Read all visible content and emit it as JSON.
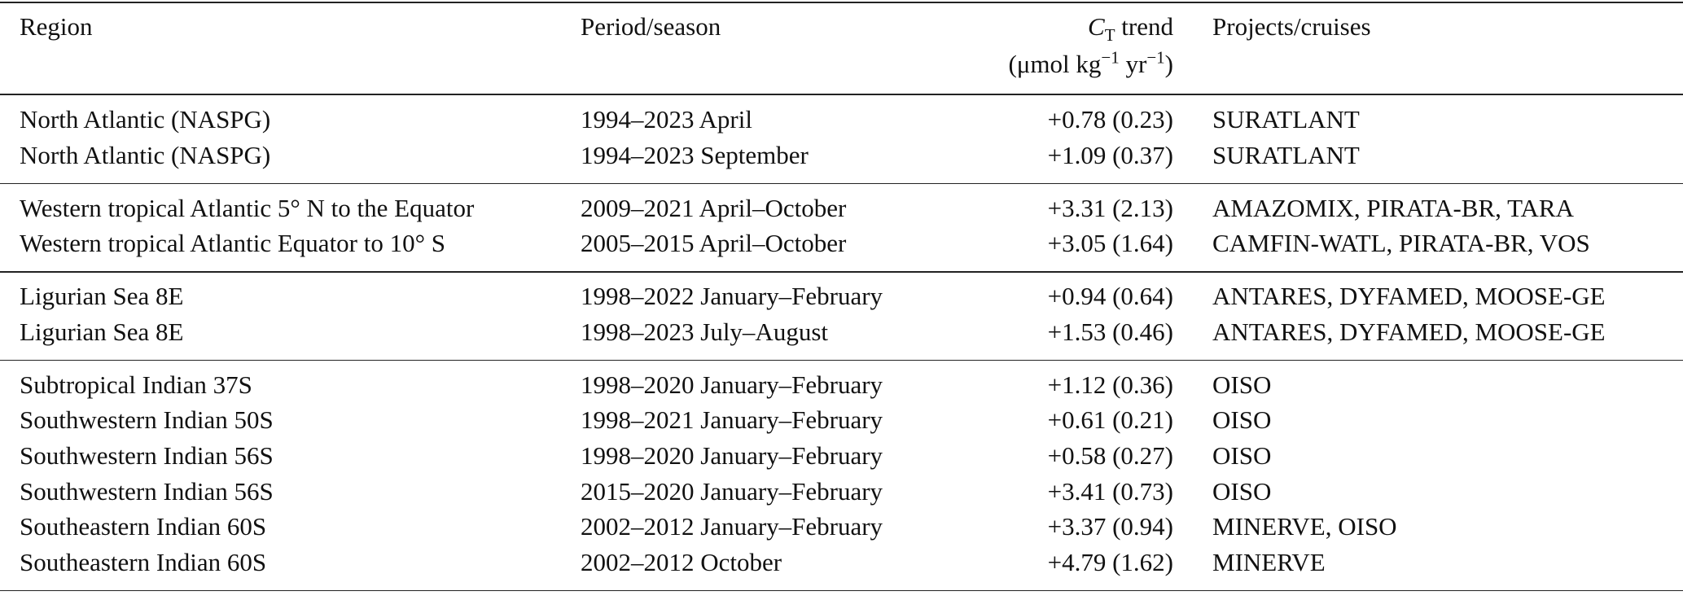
{
  "header": {
    "region": "Region",
    "period": "Period/season",
    "trend": {
      "symbol": "C",
      "subscript": "T",
      "label": "trend",
      "unit": [
        "(μmol kg",
        "−1",
        "yr",
        "−1",
        ")"
      ]
    },
    "projects": "Projects/cruises"
  },
  "table": {
    "groups": [
      {
        "rows": [
          [
            "North Atlantic (NASPG)",
            "1994–2023 April",
            "+0.78 (0.23)",
            "SURATLANT"
          ],
          [
            "North Atlantic (NASPG)",
            "1994–2023 September",
            "+1.09 (0.37)",
            "SURATLANT"
          ]
        ]
      },
      {
        "rows": [
          [
            "Western tropical Atlantic 5° N to the Equator",
            "2009–2021 April–October",
            "+3.31 (2.13)",
            "AMAZOMIX, PIRATA-BR, TARA"
          ],
          [
            "Western tropical Atlantic Equator to 10° S",
            "2005–2015 April–October",
            "+3.05 (1.64)",
            "CAMFIN-WATL, PIRATA-BR, VOS"
          ]
        ]
      },
      {
        "rows": [
          [
            "Ligurian Sea 8E",
            "1998–2022 January–February",
            "+0.94 (0.64)",
            "ANTARES, DYFAMED, MOOSE-GE"
          ],
          [
            "Ligurian Sea 8E",
            "1998–2023 July–August",
            "+1.53 (0.46)",
            "ANTARES, DYFAMED, MOOSE-GE"
          ]
        ]
      },
      {
        "rows": [
          [
            "Subtropical Indian 37S",
            "1998–2020 January–February",
            "+1.12 (0.36)",
            "OISO"
          ],
          [
            "Southwestern Indian 50S",
            "1998–2021 January–February",
            "+0.61 (0.21)",
            "OISO"
          ],
          [
            "Southwestern Indian 56S",
            "1998–2020 January–February",
            "+0.58 (0.27)",
            "OISO"
          ],
          [
            "Southwestern Indian 56S",
            "2015–2020 January–February",
            "+3.41 (0.73)",
            "OISO"
          ],
          [
            "Southeastern Indian 60S",
            "2002–2012 January–February",
            "+3.37 (0.94)",
            "MINERVE, OISO"
          ],
          [
            "Southeastern Indian 60S",
            "2002–2012 October",
            "+4.79 (1.62)",
            "MINERVE"
          ]
        ]
      }
    ]
  }
}
